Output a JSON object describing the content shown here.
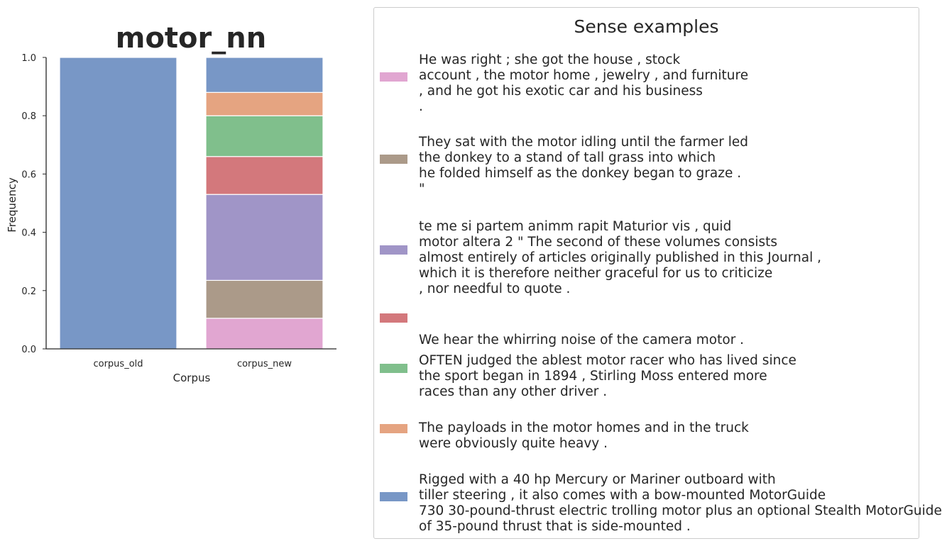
{
  "chart_data": {
    "type": "bar",
    "stacked": true,
    "title": "motor_nn",
    "xlabel": "Corpus",
    "ylabel": "Frequency",
    "ylim": [
      0,
      1.0
    ],
    "yticks": [
      "0.0",
      "0.2",
      "0.4",
      "0.6",
      "0.8",
      "1.0"
    ],
    "categories": [
      "corpus_old",
      "corpus_new"
    ],
    "series": [
      {
        "color": "#e1a6d1",
        "values": [
          0.0,
          0.105
        ]
      },
      {
        "color": "#ab9a89",
        "values": [
          0.0,
          0.13
        ]
      },
      {
        "color": "#a095c7",
        "values": [
          0.0,
          0.295
        ]
      },
      {
        "color": "#d3787c",
        "values": [
          0.0,
          0.13
        ]
      },
      {
        "color": "#80bf8c",
        "values": [
          0.0,
          0.14
        ]
      },
      {
        "color": "#e5a481",
        "values": [
          0.0,
          0.08
        ]
      },
      {
        "color": "#7897c6",
        "values": [
          1.0,
          0.12
        ]
      }
    ],
    "grid": false
  },
  "legend": {
    "title": "Sense examples",
    "items": [
      {
        "color": "#e1a6d1",
        "lines": [
          "He was right ; she got the house , stock",
          "account , the motor home , jewelry , and furniture",
          ", and he got his exotic car and his business",
          "."
        ]
      },
      {
        "color": "#ab9a89",
        "lines": [
          "They sat with the motor idling until the farmer led",
          "the donkey to a stand of tall grass into which",
          "he folded himself as the donkey began to graze .",
          "\""
        ]
      },
      {
        "color": "#a095c7",
        "lines": [
          "te me si partem animm rapit Maturior vis , quid",
          "motor altera 2 \" The second of these volumes consists",
          "almost entirely of articles originally published in this Journal ,",
          "which it is therefore neither graceful for us to criticize",
          ", nor needful to quote ."
        ]
      },
      {
        "color": "#d3787c",
        "lines": [
          "",
          "We hear the whirring noise of the camera motor ."
        ]
      },
      {
        "color": "#80bf8c",
        "lines": [
          "OFTEN judged the ablest motor racer who has lived since",
          "the sport began in 1894 , Stirling Moss entered more",
          "races than any other driver ."
        ]
      },
      {
        "color": "#e5a481",
        "lines": [
          "The payloads in the motor homes and in the truck",
          "were obviously quite heavy ."
        ]
      },
      {
        "color": "#7897c6",
        "lines": [
          "Rigged with a 40 hp Mercury or Mariner outboard with",
          "tiller steering , it also comes with a bow-mounted MotorGuide",
          "730 30-pound-thrust electric trolling motor plus an optional Stealth MotorGuide",
          "of 35-pound thrust that is side-mounted ."
        ]
      }
    ]
  }
}
